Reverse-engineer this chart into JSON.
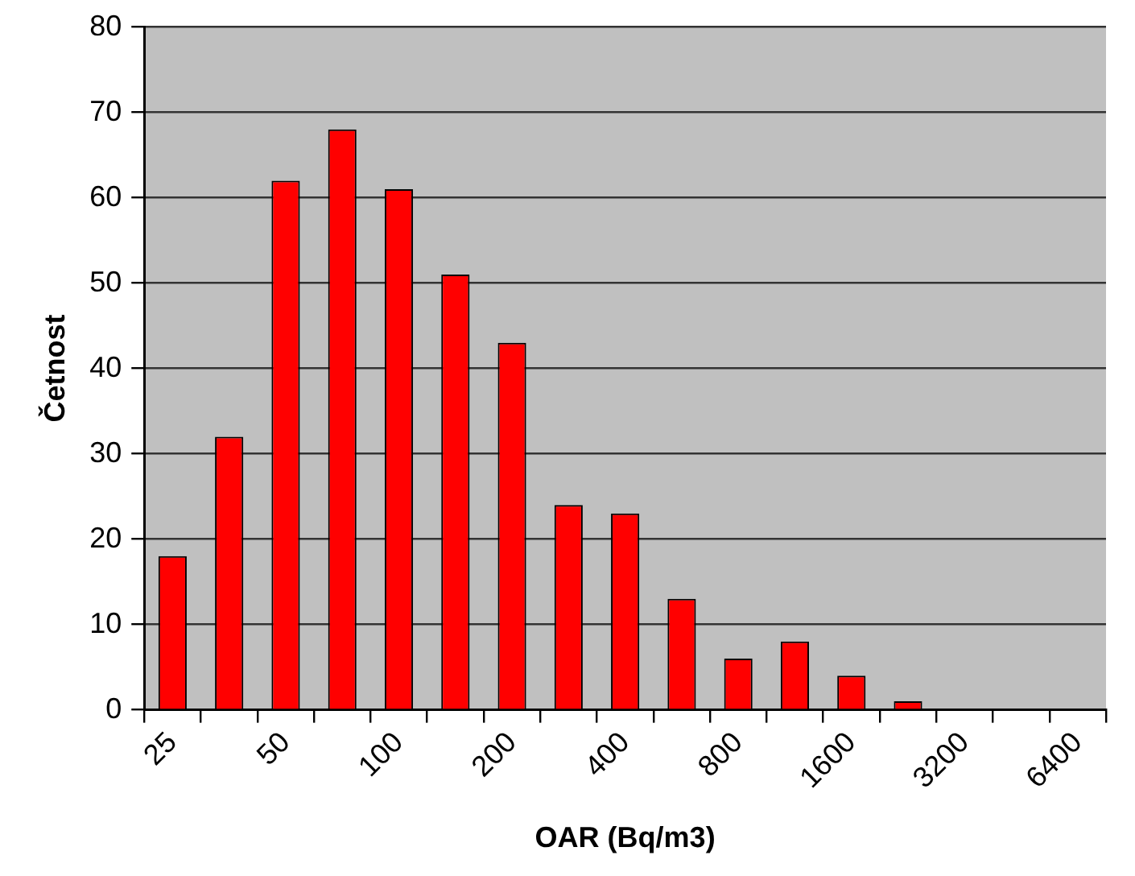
{
  "chart_data": {
    "type": "bar",
    "xlabel": "OAR (Bq/m3)",
    "ylabel": "Četnost",
    "categories": [
      "25",
      null,
      "50",
      null,
      "100",
      null,
      "200",
      null,
      "400",
      null,
      "800",
      null,
      "1600",
      null,
      "3200",
      null,
      "6400"
    ],
    "values": [
      18,
      32,
      62,
      68,
      61,
      51,
      43,
      24,
      23,
      13,
      6,
      8,
      4,
      1,
      0,
      0,
      0
    ],
    "color": "#ff0000",
    "ylim": [
      0,
      80
    ],
    "yticks": [
      0,
      10,
      20,
      30,
      40,
      50,
      60,
      70,
      80
    ],
    "grid": "y"
  }
}
